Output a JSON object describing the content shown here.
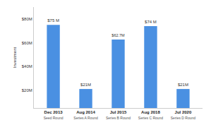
{
  "chart_data": {
    "type": "bar",
    "y_label": "Investment",
    "categories": [
      "Dec 2013\nSeed Round",
      "Aug 2014\nSeries A Round",
      "Jul 2015\nSeries B Round",
      "Aug 2018\nSeries C Round",
      "Jul 2020\nSeries D Round"
    ],
    "values": [
      75,
      21,
      62.7,
      74,
      21
    ],
    "value_labels": [
      "$75 M",
      "$21M",
      "$62.7M",
      "$74 M",
      "$21M"
    ],
    "data_labels": true,
    "color": "#4a90e2",
    "ylim": [
      5,
      90
    ],
    "yticks": [
      {
        "value": 20,
        "label": "$20M"
      },
      {
        "value": 40,
        "label": "$40M"
      },
      {
        "value": 60,
        "label": "$60M"
      },
      {
        "value": 80,
        "label": "$80M"
      }
    ],
    "grid": false
  }
}
